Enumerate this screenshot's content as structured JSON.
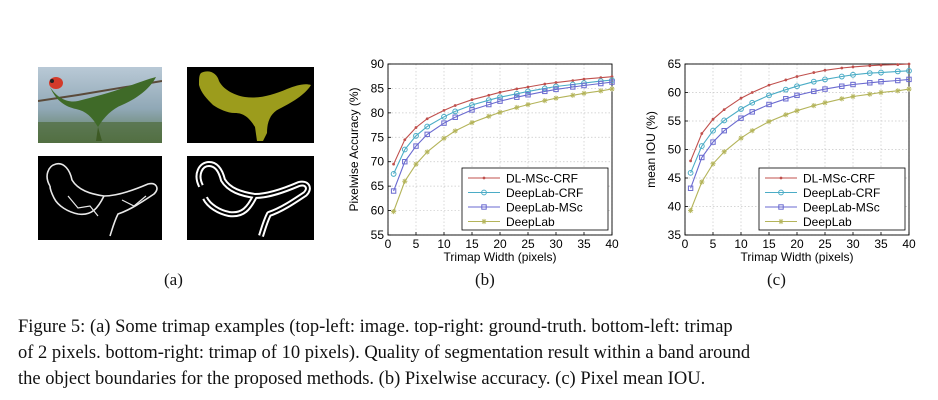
{
  "figure": {
    "labels": {
      "a": "(a)",
      "b": "(b)",
      "c": "(c)"
    },
    "caption_lines": [
      "Figure 5: (a) Some trimap examples (top-left: image. top-right: ground-truth. bottom-left: trimap",
      "of 2 pixels. bottom-right: trimap of 10 pixels). Quality of segmentation result within a band around",
      "the object boundaries for the proposed methods. (b) Pixelwise accuracy. (c) Pixel mean IOU."
    ],
    "thumbnails": {
      "image": "photo of a parrot with spread wings",
      "ground_truth": "olive-colored bird silhouette on black",
      "trimap_2": "thin white outline of bird on black",
      "trimap_10": "thick white outline of bird on black"
    },
    "colors": {
      "DL-MSc-CRF": "#c0504d",
      "DeepLab-CRF": "#4bacc6",
      "DeepLab-MSc": "#6a6ad0",
      "DeepLab": "#b4b45a",
      "gt_fill": "#9c9c1c",
      "sky": "#9db5c8",
      "bird": "#4f6a2c"
    }
  },
  "chart_data": [
    {
      "type": "line",
      "title": "",
      "xlabel": "Trimap Width (pixels)",
      "ylabel": "Pixelwise Accuracy (%)",
      "xlim": [
        0,
        40
      ],
      "ylim": [
        55,
        90
      ],
      "xticks": [
        0,
        5,
        10,
        15,
        20,
        25,
        30,
        35,
        40
      ],
      "yticks": [
        55,
        60,
        65,
        70,
        75,
        80,
        85,
        90
      ],
      "grid": true,
      "legend_position": "bottom-right",
      "x": [
        1,
        3,
        5,
        7,
        10,
        12,
        15,
        18,
        20,
        23,
        25,
        28,
        30,
        33,
        35,
        38,
        40
      ],
      "series": [
        {
          "name": "DL-MSc-CRF",
          "values": [
            69.5,
            74.5,
            77,
            78.8,
            80.5,
            81.5,
            82.7,
            83.6,
            84.2,
            84.9,
            85.3,
            85.9,
            86.2,
            86.6,
            86.9,
            87.2,
            87.4
          ]
        },
        {
          "name": "DeepLab-CRF",
          "values": [
            67.5,
            72.5,
            75.3,
            77.2,
            79.2,
            80.3,
            81.6,
            82.6,
            83.2,
            83.9,
            84.4,
            85,
            85.4,
            85.8,
            86.1,
            86.5,
            86.7
          ]
        },
        {
          "name": "DeepLab-MSc",
          "values": [
            64,
            70,
            73.2,
            75.6,
            77.9,
            79.1,
            80.6,
            81.7,
            82.4,
            83.2,
            83.7,
            84.4,
            84.8,
            85.3,
            85.6,
            86,
            86.3
          ]
        },
        {
          "name": "DeepLab",
          "values": [
            59.8,
            66,
            69.5,
            72,
            74.8,
            76.3,
            78,
            79.3,
            80.1,
            81.1,
            81.7,
            82.5,
            83,
            83.6,
            84,
            84.5,
            84.9
          ]
        }
      ]
    },
    {
      "type": "line",
      "title": "",
      "xlabel": "Trimap Width (pixels)",
      "ylabel": "mean IOU (%)",
      "xlim": [
        0,
        40
      ],
      "ylim": [
        35,
        65
      ],
      "xticks": [
        0,
        5,
        10,
        15,
        20,
        25,
        30,
        35,
        40
      ],
      "yticks": [
        35,
        40,
        45,
        50,
        55,
        60,
        65
      ],
      "grid": true,
      "legend_position": "bottom-right",
      "x": [
        1,
        3,
        5,
        7,
        10,
        12,
        15,
        18,
        20,
        23,
        25,
        28,
        30,
        33,
        35,
        38,
        40
      ],
      "series": [
        {
          "name": "DL-MSc-CRF",
          "values": [
            48,
            52.8,
            55.3,
            57,
            59,
            60,
            61.3,
            62.2,
            62.8,
            63.5,
            63.9,
            64.3,
            64.5,
            64.7,
            64.8,
            64.9,
            65
          ]
        },
        {
          "name": "DeepLab-CRF",
          "values": [
            45.9,
            50.6,
            53.3,
            55.1,
            57.1,
            58.2,
            59.5,
            60.5,
            61.1,
            61.9,
            62.3,
            62.8,
            63.1,
            63.4,
            63.5,
            63.7,
            63.8
          ]
        },
        {
          "name": "DeepLab-MSc",
          "values": [
            43.2,
            48.6,
            51.3,
            53.3,
            55.5,
            56.6,
            57.9,
            58.9,
            59.5,
            60.2,
            60.6,
            61.1,
            61.4,
            61.7,
            61.9,
            62.1,
            62.3
          ]
        },
        {
          "name": "DeepLab",
          "values": [
            39.3,
            44.3,
            47.5,
            49.6,
            52,
            53.3,
            54.9,
            56.1,
            56.8,
            57.7,
            58.2,
            58.9,
            59.3,
            59.7,
            60,
            60.3,
            60.6
          ]
        }
      ]
    }
  ]
}
